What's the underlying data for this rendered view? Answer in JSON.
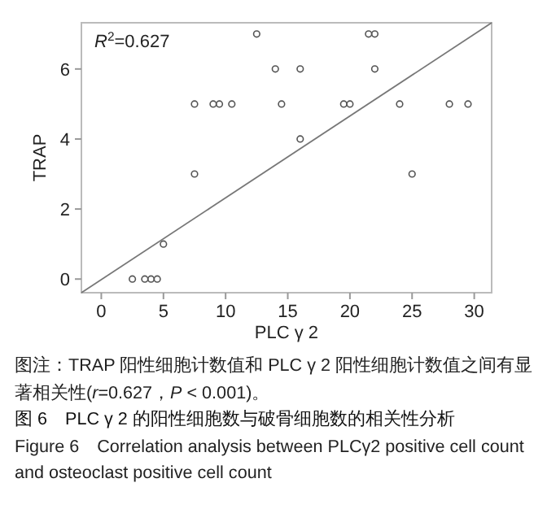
{
  "chart_data": {
    "type": "scatter",
    "title": "图 6　PLC γ 2 的阳性细胞数与破骨细胞数的相关性分析",
    "subtitle": "Figure 6　Correlation analysis between PLCγ2 positive cell count and osteoclast positive cell count",
    "xlabel": "PLC γ 2",
    "ylabel": "TRAP",
    "xlim": [
      -1.6,
      31.4
    ],
    "ylim": [
      -0.39,
      7.32
    ],
    "xticks": [
      0,
      5,
      10,
      15,
      20,
      25,
      30
    ],
    "yticks": [
      0,
      2,
      4,
      6
    ],
    "grid": false,
    "annotations": [
      "*R*$^{2}$=0.627",
      "图注：TRAP 阳性细胞计数值和 PLC γ 2 阳性细胞计数值之间有显著相关性(*r*=0.627，*P* < 0.001)。"
    ],
    "series": [
      {
        "marker": "circle",
        "color": "#555555",
        "x": [
          2.5,
          3.5,
          4,
          4.5,
          5,
          7.5,
          7.5,
          9,
          9.5,
          10.5,
          12.5,
          14,
          14.5,
          16,
          16,
          19.5,
          20,
          21.5,
          22,
          22,
          24,
          25,
          28,
          29.5
        ],
        "values": [
          0,
          0,
          0,
          0,
          1,
          5,
          3,
          5,
          5,
          5,
          7,
          6,
          5,
          6,
          4,
          5,
          5,
          7,
          7,
          6,
          5,
          3,
          5,
          5
        ]
      },
      {
        "type": "line",
        "marker": "none",
        "color": "#777777",
        "x": [
          -1.6,
          31.4
        ],
        "values": [
          -0.39,
          7.32
        ]
      }
    ]
  }
}
